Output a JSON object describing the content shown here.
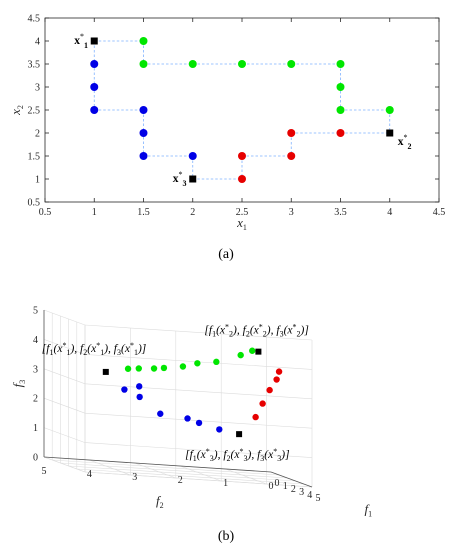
{
  "colors": {
    "blue": "#0000e6",
    "green": "#00e600",
    "red": "#e60000",
    "black": "#000000",
    "connector": "#7fb2ff",
    "grid3d": "#dcdcdc"
  },
  "chart_data": [
    {
      "type": "scatter",
      "panel_label": "(a)",
      "xlabel": "x1",
      "ylabel": "x2",
      "xlim": [
        0.5,
        4.5
      ],
      "ylim": [
        0.5,
        4.5
      ],
      "xticks": [
        "0.5",
        "1",
        "1.5",
        "2",
        "2.5",
        "3",
        "3.5",
        "4",
        "4.5"
      ],
      "yticks": [
        "0.5",
        "1",
        "1.5",
        "2",
        "2.5",
        "3",
        "3.5",
        "4",
        "4.5"
      ],
      "grid": false,
      "series": [
        {
          "color": "blue",
          "points": [
            [
              1,
              3.5
            ],
            [
              1,
              3
            ],
            [
              1,
              2.5
            ],
            [
              1.5,
              2.5
            ],
            [
              1.5,
              2
            ],
            [
              1.5,
              1.5
            ],
            [
              2,
              1.5
            ]
          ]
        },
        {
          "color": "green",
          "points": [
            [
              1.5,
              4
            ],
            [
              1.5,
              3.5
            ],
            [
              2,
              3.5
            ],
            [
              2.5,
              3.5
            ],
            [
              3,
              3.5
            ],
            [
              3.5,
              3.5
            ],
            [
              3.5,
              3
            ],
            [
              3.5,
              2.5
            ],
            [
              4,
              2.5
            ]
          ]
        },
        {
          "color": "red",
          "points": [
            [
              2.5,
              1.5
            ],
            [
              2.5,
              1
            ],
            [
              3,
              2
            ],
            [
              3,
              1.5
            ],
            [
              3.5,
              2
            ]
          ]
        },
        {
          "color": "black",
          "marker": "square",
          "points": [
            [
              1,
              4
            ],
            [
              4,
              2
            ],
            [
              2,
              1
            ]
          ]
        }
      ],
      "connectors": [
        [
          [
            1,
            4
          ],
          [
            1.5,
            4
          ]
        ],
        [
          [
            1,
            4
          ],
          [
            1,
            2.5
          ]
        ],
        [
          [
            1,
            2.5
          ],
          [
            1.5,
            2.5
          ]
        ],
        [
          [
            1.5,
            2.5
          ],
          [
            1.5,
            1.5
          ]
        ],
        [
          [
            1.5,
            1.5
          ],
          [
            2,
            1.5
          ]
        ],
        [
          [
            2,
            1.5
          ],
          [
            2,
            1
          ]
        ],
        [
          [
            1.5,
            4
          ],
          [
            1.5,
            3.5
          ]
        ],
        [
          [
            1.5,
            3.5
          ],
          [
            3.5,
            3.5
          ]
        ],
        [
          [
            3.5,
            3.5
          ],
          [
            3.5,
            2.5
          ]
        ],
        [
          [
            3.5,
            2.5
          ],
          [
            4,
            2.5
          ]
        ],
        [
          [
            4,
            2.5
          ],
          [
            4,
            2
          ]
        ],
        [
          [
            3,
            2
          ],
          [
            4,
            2
          ]
        ],
        [
          [
            3,
            2
          ],
          [
            3,
            1.5
          ]
        ],
        [
          [
            2.5,
            1.5
          ],
          [
            3,
            1.5
          ]
        ],
        [
          [
            2.5,
            1.5
          ],
          [
            2.5,
            1
          ]
        ],
        [
          [
            2,
            1
          ],
          [
            2.5,
            1
          ]
        ]
      ],
      "annotations": [
        {
          "base": "x",
          "sub": "1",
          "at": [
            1,
            4
          ],
          "pos": "left"
        },
        {
          "base": "x",
          "sub": "2",
          "at": [
            4,
            2
          ],
          "pos": "right"
        },
        {
          "base": "x",
          "sub": "3",
          "at": [
            2,
            1
          ],
          "pos": "left"
        }
      ]
    },
    {
      "type": "scatter3d",
      "panel_label": "(b)",
      "xlabel": "f1",
      "ylabel": "f2",
      "zlabel": "f3",
      "xlim": [
        0,
        5
      ],
      "ylim": [
        0,
        5
      ],
      "zlim": [
        0,
        5
      ],
      "xticks": [
        "0",
        "1",
        "2",
        "3",
        "4",
        "5"
      ],
      "yticks": [
        "0",
        "1",
        "2",
        "3",
        "4",
        "5"
      ],
      "zticks": [
        "0",
        "1",
        "2",
        "3",
        "4",
        "5"
      ],
      "grid": true,
      "series": [
        {
          "color": "blue",
          "points": [
            [
              2.2,
              3.3,
              2.8
            ],
            [
              1.5,
              3.5,
              2.6
            ],
            [
              1.7,
              3.2,
              2.4
            ],
            [
              2.0,
              2.8,
              1.9
            ],
            [
              2.0,
              2.2,
              1.8
            ],
            [
              2.3,
              2.0,
              1.7
            ],
            [
              2.0,
              1.5,
              1.5
            ]
          ]
        },
        {
          "color": "green",
          "points": [
            [
              2.5,
              3.6,
              3.4
            ],
            [
              2.7,
              3.4,
              3.45
            ],
            [
              2.9,
              3.1,
              3.5
            ],
            [
              3.0,
              2.9,
              3.55
            ],
            [
              3.1,
              2.5,
              3.65
            ],
            [
              3.2,
              2.2,
              3.8
            ],
            [
              3.3,
              1.8,
              3.9
            ],
            [
              3.5,
              1.3,
              4.2
            ],
            [
              3.8,
              1.1,
              4.4
            ]
          ]
        },
        {
          "color": "red",
          "points": [
            [
              2.0,
              0.7,
              2.0
            ],
            [
              2.3,
              0.6,
              2.5
            ],
            [
              2.6,
              0.5,
              3.0
            ],
            [
              2.9,
              0.4,
              3.4
            ],
            [
              3.2,
              0.4,
              3.7
            ]
          ]
        },
        {
          "color": "black",
          "marker": "square",
          "points": [
            [
              2.0,
              4.0,
              3.2
            ],
            [
              2.2,
              1.1,
              1.4
            ],
            [
              4.0,
              1.0,
              4.4
            ]
          ]
        }
      ],
      "annotations": [
        {
          "k": "1",
          "at": [
            2.0,
            4.0,
            3.2
          ]
        },
        {
          "k": "2",
          "at": [
            4.0,
            1.0,
            4.4
          ]
        },
        {
          "k": "3",
          "at": [
            2.2,
            1.1,
            1.4
          ]
        }
      ]
    }
  ]
}
